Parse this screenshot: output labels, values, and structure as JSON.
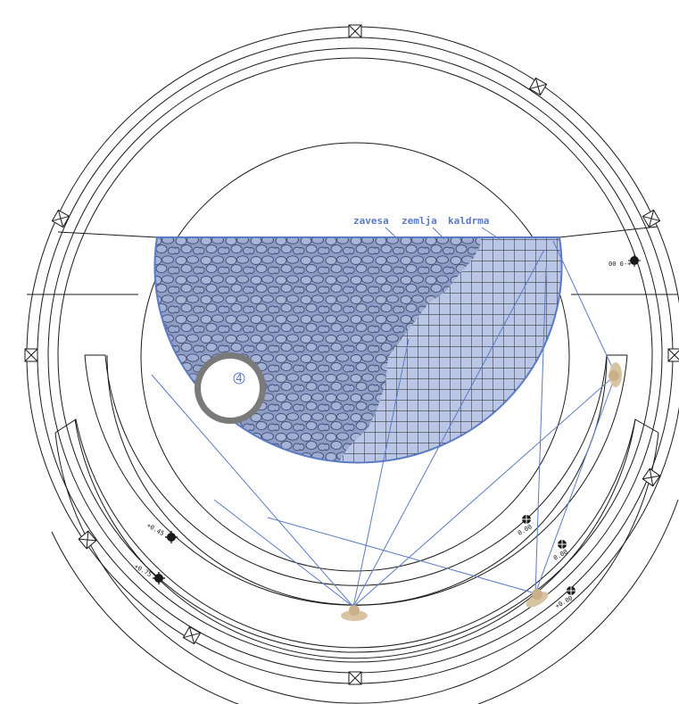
{
  "plan": {
    "labels": {
      "zavesa": "zavesa",
      "zemlja": "zemlja",
      "kaldrma": "kaldrma"
    },
    "stage_number": "4",
    "elevations": {
      "top_right": "00 0-+",
      "right_mid": "0.00",
      "right_low": "0.00",
      "bottom_right": "+0.00",
      "left_upper": "+0.45",
      "left_lower": "+0.75"
    },
    "colors": {
      "line": "#1a1a1a",
      "accent": "#5b7bc4",
      "stone_fill": "#8c9cc5",
      "grid_fill": "#b9c6e6",
      "stone_dark": "#3f4b6e",
      "spot": "#d8c3a2",
      "pit_ring": "#7a7a7a"
    }
  }
}
